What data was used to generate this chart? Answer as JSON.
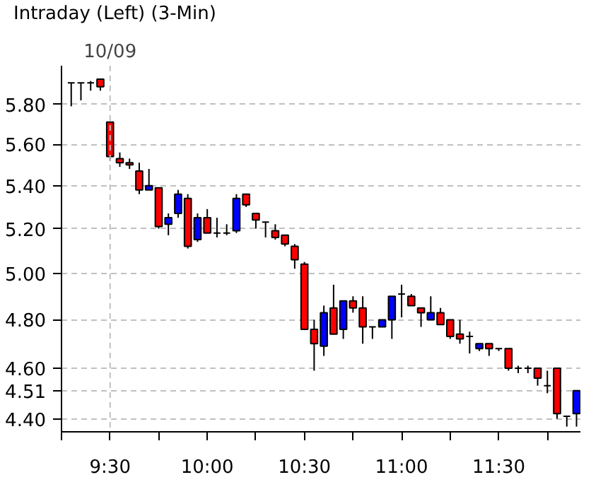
{
  "chart_data": {
    "type": "candlestick",
    "title": "Intraday (Left) (3-Min)",
    "x": [
      9.3,
      9.35,
      9.4,
      9.45,
      9.5,
      9.55,
      9.6,
      9.65,
      9.7,
      9.75,
      9.8,
      9.85,
      9.9,
      9.95,
      10.0,
      10.05,
      10.1,
      10.15,
      10.2,
      10.25,
      10.3,
      10.35,
      10.4,
      10.45,
      10.5,
      10.55,
      10.6,
      10.65,
      10.7,
      10.75,
      10.8,
      10.85,
      10.9,
      10.95,
      11.0,
      11.05,
      11.1,
      11.15,
      11.2,
      11.25,
      11.3,
      11.35,
      11.4,
      11.45,
      11.5,
      11.55,
      11.6,
      11.65,
      11.7,
      11.75,
      11.8,
      11.85,
      11.9
    ],
    "ohlc": [
      [
        5.91,
        5.91,
        5.79,
        5.91
      ],
      [
        5.91,
        5.91,
        5.82,
        5.91
      ],
      [
        5.91,
        5.92,
        5.87,
        5.91
      ],
      [
        5.93,
        5.93,
        5.87,
        5.89
      ],
      [
        5.71,
        5.71,
        5.52,
        5.54
      ],
      [
        5.53,
        5.56,
        5.49,
        5.51
      ],
      [
        5.51,
        5.53,
        5.48,
        5.5
      ],
      [
        5.47,
        5.51,
        5.36,
        5.38
      ],
      [
        5.38,
        5.48,
        5.38,
        5.4
      ],
      [
        5.39,
        5.39,
        5.2,
        5.21
      ],
      [
        5.22,
        5.27,
        5.17,
        5.25
      ],
      [
        5.27,
        5.38,
        5.25,
        5.36
      ],
      [
        5.34,
        5.36,
        5.11,
        5.12
      ],
      [
        5.15,
        5.27,
        5.14,
        5.25
      ],
      [
        5.25,
        5.29,
        5.18,
        5.18
      ],
      [
        5.18,
        5.25,
        5.16,
        5.18
      ],
      [
        5.18,
        5.22,
        5.17,
        5.18
      ],
      [
        5.19,
        5.36,
        5.18,
        5.34
      ],
      [
        5.36,
        5.36,
        5.3,
        5.31
      ],
      [
        5.27,
        5.27,
        5.2,
        5.24
      ],
      [
        5.23,
        5.23,
        5.16,
        5.23
      ],
      [
        5.19,
        5.22,
        5.15,
        5.16
      ],
      [
        5.17,
        5.17,
        5.12,
        5.13
      ],
      [
        5.12,
        5.13,
        5.02,
        5.06
      ],
      [
        5.04,
        5.05,
        4.76,
        4.76
      ],
      [
        4.76,
        4.8,
        4.59,
        4.7
      ],
      [
        4.69,
        4.86,
        4.65,
        4.83
      ],
      [
        4.85,
        4.95,
        4.74,
        4.74
      ],
      [
        4.76,
        4.88,
        4.72,
        4.88
      ],
      [
        4.88,
        4.9,
        4.83,
        4.85
      ],
      [
        4.85,
        4.9,
        4.7,
        4.77
      ],
      [
        4.77,
        4.77,
        4.72,
        4.77
      ],
      [
        4.77,
        4.8,
        4.77,
        4.8
      ],
      [
        4.8,
        4.9,
        4.72,
        4.9
      ],
      [
        4.91,
        4.95,
        4.81,
        4.91
      ],
      [
        4.9,
        4.91,
        4.86,
        4.86
      ],
      [
        4.85,
        4.85,
        4.77,
        4.83
      ],
      [
        4.8,
        4.9,
        4.8,
        4.83
      ],
      [
        4.83,
        4.85,
        4.78,
        4.78
      ],
      [
        4.8,
        4.8,
        4.72,
        4.73
      ],
      [
        4.74,
        4.8,
        4.7,
        4.72
      ],
      [
        4.73,
        4.75,
        4.66,
        4.73
      ],
      [
        4.68,
        4.7,
        4.67,
        4.7
      ],
      [
        4.7,
        4.7,
        4.65,
        4.68
      ],
      [
        4.68,
        4.68,
        4.67,
        4.68
      ],
      [
        4.68,
        4.68,
        4.59,
        4.6
      ],
      [
        4.6,
        4.61,
        4.58,
        4.6
      ],
      [
        4.6,
        4.61,
        4.58,
        4.6
      ],
      [
        4.6,
        4.6,
        4.53,
        4.56
      ],
      [
        4.53,
        4.59,
        4.5,
        4.53
      ],
      [
        4.6,
        4.6,
        4.4,
        4.42
      ],
      [
        4.41,
        4.41,
        4.37,
        4.41
      ],
      [
        4.42,
        4.51,
        4.37,
        4.51
      ]
    ],
    "colors": [
      "#000000",
      "#000000",
      "#000000",
      "#ff0000",
      "#ff0000",
      "#ff0000",
      "#ff0000",
      "#ff0000",
      "#0000ff",
      "#ff0000",
      "#0000ff",
      "#0000ff",
      "#ff0000",
      "#0000ff",
      "#ff0000",
      "#000000",
      "#000000",
      "#0000ff",
      "#ff0000",
      "#ff0000",
      "#000000",
      "#ff0000",
      "#ff0000",
      "#ff0000",
      "#ff0000",
      "#ff0000",
      "#0000ff",
      "#ff0000",
      "#0000ff",
      "#ff0000",
      "#ff0000",
      "#000000",
      "#0000ff",
      "#0000ff",
      "#000000",
      "#ff0000",
      "#ff0000",
      "#0000ff",
      "#ff0000",
      "#ff0000",
      "#ff0000",
      "#000000",
      "#0000ff",
      "#ff0000",
      "#000000",
      "#ff0000",
      "#000000",
      "#000000",
      "#ff0000",
      "#000000",
      "#ff0000",
      "#000000",
      "#0000ff"
    ],
    "log": true,
    "xlim": [
      9.25,
      11.92
    ],
    "xticks": [
      {
        "value": 9.25,
        "label": null
      },
      {
        "value": 9.5,
        "label": "9:30"
      },
      {
        "value": 9.75,
        "label": null
      },
      {
        "value": 10,
        "label": "10:00"
      },
      {
        "value": 10.25,
        "label": null
      },
      {
        "value": 10.5,
        "label": "10:30"
      },
      {
        "value": 10.75,
        "label": null
      },
      {
        "value": 11,
        "label": "11:00"
      },
      {
        "value": 11.25,
        "label": null
      },
      {
        "value": 11.5,
        "label": "11:30"
      },
      {
        "value": 11.75,
        "label": null
      }
    ],
    "ylim": [
      4.35,
      6.0
    ],
    "yticks": [
      {
        "value": 4.4,
        "label": "4.40"
      },
      {
        "value": 4.51,
        "label": "4.51"
      },
      {
        "value": 4.6,
        "label": "4.60"
      },
      {
        "value": 4.8,
        "label": "4.80"
      },
      {
        "value": 5.0,
        "label": "5.00"
      },
      {
        "value": 5.2,
        "label": "5.20"
      },
      {
        "value": 5.4,
        "label": "5.40"
      },
      {
        "value": 5.6,
        "label": "5.60"
      },
      {
        "value": 5.8,
        "label": "5.80"
      }
    ],
    "grid": "y",
    "ref_lines": [
      {
        "axis": "x",
        "value": 9.5,
        "label": "10/09",
        "color": "#c0c0c0",
        "line_style": "dashed"
      }
    ]
  }
}
